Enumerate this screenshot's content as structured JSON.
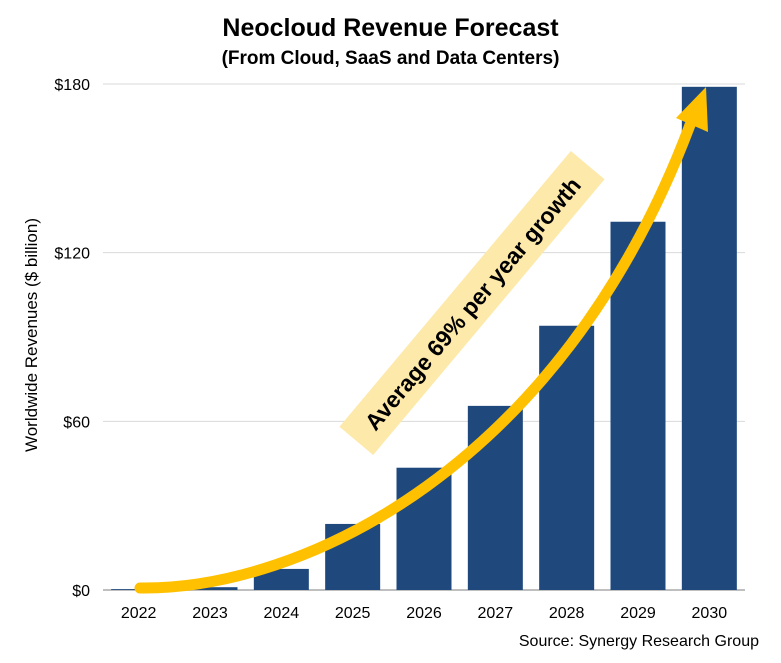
{
  "chart_data": {
    "type": "bar",
    "title": "Neocloud Revenue Forecast",
    "subtitle": "(From Cloud, SaaS and Data Centers)",
    "xlabel": "",
    "ylabel": "Worldwide Revenues ($ billion)",
    "categories": [
      "2022",
      "2023",
      "2024",
      "2025",
      "2026",
      "2027",
      "2028",
      "2029",
      "2030"
    ],
    "values": [
      0.3,
      1,
      7.5,
      23.5,
      43.5,
      65.5,
      94,
      131,
      179
    ],
    "ylim": [
      0,
      180
    ],
    "yticks": [
      0,
      60,
      120,
      180
    ],
    "ytick_labels": [
      "$0",
      "$60",
      "$120",
      "$180"
    ],
    "grid": true,
    "bar_color": "#1f497d",
    "annotation": {
      "text": "Average 69% per year growth",
      "arrow_color": "#ffc000",
      "band_color": "#fde9a9"
    },
    "source": "Source: Synergy Research Group"
  }
}
